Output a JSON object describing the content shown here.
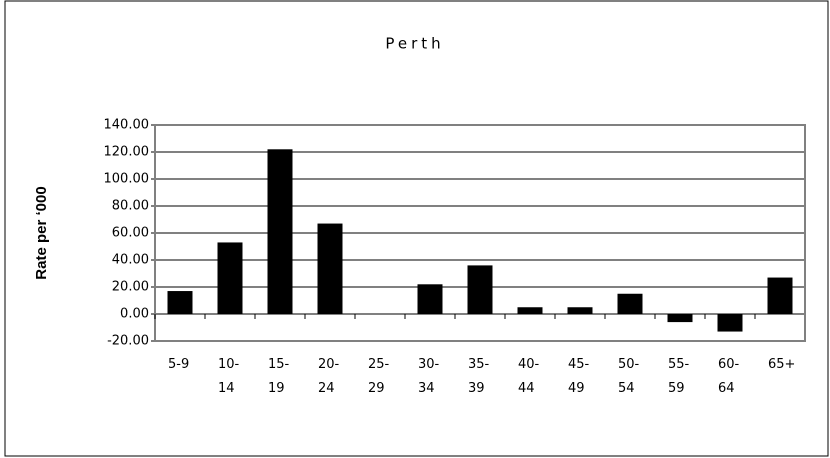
{
  "chart_data": {
    "type": "bar",
    "title": "Perth",
    "y_label": "Rate per ‘000",
    "categories": [
      "5-9",
      "10-14",
      "15-19",
      "20-24",
      "25-29",
      "30-34",
      "35-39",
      "40-44",
      "45-49",
      "50-54",
      "55-59",
      "60-64",
      "65+"
    ],
    "values": [
      17,
      53,
      122,
      67,
      0,
      22,
      36,
      5,
      5,
      15,
      -6,
      -13,
      27
    ],
    "color": "#000000",
    "ylim": [
      -20,
      140
    ],
    "yticks": [
      {
        "value": -20,
        "label": "-20.00"
      },
      {
        "value": 0,
        "label": "0.00"
      },
      {
        "value": 20,
        "label": "20.00"
      },
      {
        "value": 40,
        "label": "40.00"
      },
      {
        "value": 60,
        "label": "60.00"
      },
      {
        "value": 80,
        "label": "80.00"
      },
      {
        "value": 100,
        "label": "100.00"
      },
      {
        "value": 120,
        "label": "120.00"
      },
      {
        "value": 140,
        "label": "140.00"
      }
    ],
    "grid": true
  }
}
